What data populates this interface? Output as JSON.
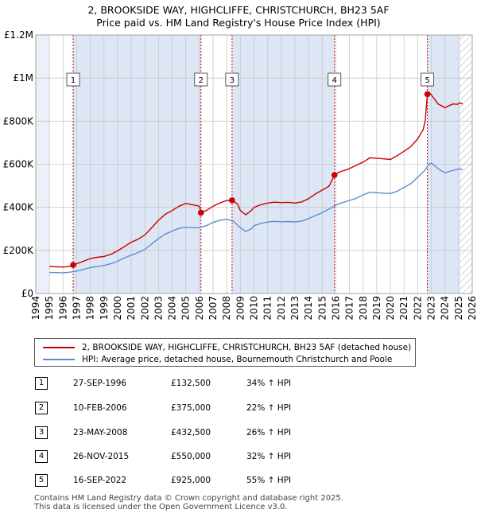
{
  "title_line1": "2, BROOKSIDE WAY, HIGHCLIFFE, CHRISTCHURCH, BH23 5AF",
  "title_line2": "Price paid vs. HM Land Registry's House Price Index (HPI)",
  "colors": {
    "property": "#cc0000",
    "hpi": "#5b8fd0",
    "band": "#dde6f5",
    "grid": "#c8c8c8"
  },
  "chart_data": {
    "type": "line",
    "title": "2, BROOKSIDE WAY, HIGHCLIFFE, CHRISTCHURCH, BH23 5AF — Price paid vs. HM Land Registry's House Price Index (HPI)",
    "xlabel": "",
    "ylabel": "",
    "xlim": [
      1994,
      2026
    ],
    "ylim": [
      0,
      1200000
    ],
    "x_ticks": [
      1994,
      1995,
      1996,
      1997,
      1998,
      1999,
      2000,
      2001,
      2002,
      2003,
      2004,
      2005,
      2006,
      2007,
      2008,
      2009,
      2010,
      2011,
      2012,
      2013,
      2014,
      2015,
      2016,
      2017,
      2018,
      2019,
      2020,
      2021,
      2022,
      2023,
      2024,
      2025,
      2026
    ],
    "y_ticks": [
      {
        "value": 0,
        "label": "£0"
      },
      {
        "value": 200000,
        "label": "£200K"
      },
      {
        "value": 400000,
        "label": "£400K"
      },
      {
        "value": 600000,
        "label": "£600K"
      },
      {
        "value": 800000,
        "label": "£800K"
      },
      {
        "value": 1000000,
        "label": "£1M"
      },
      {
        "value": 1200000,
        "label": "£1.2M"
      }
    ],
    "grid": true,
    "data_start_year": 1995,
    "future_start_year": 2025.1,
    "series": [
      {
        "name": "2, BROOKSIDE WAY, HIGHCLIFFE, CHRISTCHURCH, BH23 5AF (detached house)",
        "color": "#cc0000",
        "points": [
          [
            1995.0,
            125000
          ],
          [
            1995.5,
            124000
          ],
          [
            1996.0,
            123000
          ],
          [
            1996.5,
            126000
          ],
          [
            1996.74,
            132500
          ],
          [
            1997.0,
            138000
          ],
          [
            1997.5,
            150000
          ],
          [
            1998.0,
            162000
          ],
          [
            1998.5,
            168000
          ],
          [
            1999.0,
            172000
          ],
          [
            1999.5,
            182000
          ],
          [
            2000.0,
            198000
          ],
          [
            2000.5,
            218000
          ],
          [
            2001.0,
            238000
          ],
          [
            2001.5,
            252000
          ],
          [
            2002.0,
            272000
          ],
          [
            2002.5,
            305000
          ],
          [
            2003.0,
            340000
          ],
          [
            2003.5,
            368000
          ],
          [
            2004.0,
            385000
          ],
          [
            2004.5,
            405000
          ],
          [
            2005.0,
            418000
          ],
          [
            2005.5,
            412000
          ],
          [
            2006.0,
            405000
          ],
          [
            2006.11,
            375000
          ],
          [
            2006.5,
            385000
          ],
          [
            2007.0,
            405000
          ],
          [
            2007.5,
            420000
          ],
          [
            2008.0,
            432000
          ],
          [
            2008.39,
            432500
          ],
          [
            2008.8,
            415000
          ],
          [
            2009.0,
            385000
          ],
          [
            2009.4,
            365000
          ],
          [
            2009.8,
            385000
          ],
          [
            2010.0,
            400000
          ],
          [
            2010.5,
            412000
          ],
          [
            2011.0,
            420000
          ],
          [
            2011.5,
            424000
          ],
          [
            2012.0,
            422000
          ],
          [
            2012.5,
            423000
          ],
          [
            2013.0,
            420000
          ],
          [
            2013.5,
            425000
          ],
          [
            2014.0,
            440000
          ],
          [
            2014.5,
            462000
          ],
          [
            2015.0,
            480000
          ],
          [
            2015.5,
            498000
          ],
          [
            2015.9,
            550000
          ],
          [
            2016.3,
            565000
          ],
          [
            2016.8,
            575000
          ],
          [
            2017.0,
            580000
          ],
          [
            2017.5,
            595000
          ],
          [
            2018.0,
            610000
          ],
          [
            2018.5,
            630000
          ],
          [
            2019.0,
            628000
          ],
          [
            2019.5,
            625000
          ],
          [
            2020.0,
            622000
          ],
          [
            2020.5,
            640000
          ],
          [
            2021.0,
            660000
          ],
          [
            2021.5,
            682000
          ],
          [
            2022.0,
            718000
          ],
          [
            2022.4,
            760000
          ],
          [
            2022.55,
            800000
          ],
          [
            2022.71,
            925000
          ],
          [
            2022.9,
            930000
          ],
          [
            2023.2,
            905000
          ],
          [
            2023.5,
            880000
          ],
          [
            2023.8,
            870000
          ],
          [
            2024.0,
            862000
          ],
          [
            2024.3,
            872000
          ],
          [
            2024.6,
            880000
          ],
          [
            2024.9,
            878000
          ],
          [
            2025.1,
            885000
          ],
          [
            2025.3,
            880000
          ]
        ]
      },
      {
        "name": "HPI: Average price, detached house, Bournemouth Christchurch and Poole",
        "color": "#5b8fd0",
        "points": [
          [
            1995.0,
            98000
          ],
          [
            1995.5,
            97000
          ],
          [
            1996.0,
            96000
          ],
          [
            1996.5,
            99000
          ],
          [
            1997.0,
            104000
          ],
          [
            1997.5,
            112000
          ],
          [
            1998.0,
            120000
          ],
          [
            1998.5,
            125000
          ],
          [
            1999.0,
            130000
          ],
          [
            1999.5,
            138000
          ],
          [
            2000.0,
            150000
          ],
          [
            2000.5,
            165000
          ],
          [
            2001.0,
            178000
          ],
          [
            2001.5,
            190000
          ],
          [
            2002.0,
            205000
          ],
          [
            2002.5,
            230000
          ],
          [
            2003.0,
            255000
          ],
          [
            2003.5,
            276000
          ],
          [
            2004.0,
            290000
          ],
          [
            2004.5,
            302000
          ],
          [
            2005.0,
            308000
          ],
          [
            2005.5,
            305000
          ],
          [
            2006.0,
            306000
          ],
          [
            2006.5,
            315000
          ],
          [
            2007.0,
            330000
          ],
          [
            2007.5,
            340000
          ],
          [
            2008.0,
            345000
          ],
          [
            2008.5,
            335000
          ],
          [
            2009.0,
            305000
          ],
          [
            2009.4,
            288000
          ],
          [
            2009.8,
            300000
          ],
          [
            2010.0,
            315000
          ],
          [
            2010.5,
            325000
          ],
          [
            2011.0,
            332000
          ],
          [
            2011.5,
            335000
          ],
          [
            2012.0,
            333000
          ],
          [
            2012.5,
            334000
          ],
          [
            2013.0,
            332000
          ],
          [
            2013.5,
            336000
          ],
          [
            2014.0,
            348000
          ],
          [
            2014.5,
            362000
          ],
          [
            2015.0,
            375000
          ],
          [
            2015.5,
            392000
          ],
          [
            2016.0,
            410000
          ],
          [
            2016.5,
            422000
          ],
          [
            2017.0,
            432000
          ],
          [
            2017.5,
            442000
          ],
          [
            2018.0,
            458000
          ],
          [
            2018.5,
            470000
          ],
          [
            2019.0,
            468000
          ],
          [
            2019.5,
            466000
          ],
          [
            2020.0,
            464000
          ],
          [
            2020.5,
            475000
          ],
          [
            2021.0,
            492000
          ],
          [
            2021.5,
            510000
          ],
          [
            2022.0,
            540000
          ],
          [
            2022.5,
            570000
          ],
          [
            2022.8,
            598000
          ],
          [
            2023.0,
            605000
          ],
          [
            2023.3,
            590000
          ],
          [
            2023.6,
            575000
          ],
          [
            2024.0,
            560000
          ],
          [
            2024.4,
            568000
          ],
          [
            2024.8,
            575000
          ],
          [
            2025.1,
            578000
          ],
          [
            2025.3,
            575000
          ]
        ]
      }
    ],
    "transactions": [
      {
        "n": "1",
        "year": 1996.74,
        "price": 132500
      },
      {
        "n": "2",
        "year": 2006.11,
        "price": 375000
      },
      {
        "n": "3",
        "year": 2008.39,
        "price": 432500
      },
      {
        "n": "4",
        "year": 2015.9,
        "price": 550000
      },
      {
        "n": "5",
        "year": 2022.71,
        "price": 925000
      }
    ]
  },
  "legend": {
    "property": "2, BROOKSIDE WAY, HIGHCLIFFE, CHRISTCHURCH, BH23 5AF (detached house)",
    "hpi": "HPI: Average price, detached house, Bournemouth Christchurch and Poole"
  },
  "transactions_table": [
    {
      "n": "1",
      "date": "27-SEP-1996",
      "price": "£132,500",
      "hpi": "34% ↑ HPI"
    },
    {
      "n": "2",
      "date": "10-FEB-2006",
      "price": "£375,000",
      "hpi": "22% ↑ HPI"
    },
    {
      "n": "3",
      "date": "23-MAY-2008",
      "price": "£432,500",
      "hpi": "26% ↑ HPI"
    },
    {
      "n": "4",
      "date": "26-NOV-2015",
      "price": "£550,000",
      "hpi": "32% ↑ HPI"
    },
    {
      "n": "5",
      "date": "16-SEP-2022",
      "price": "£925,000",
      "hpi": "55% ↑ HPI"
    }
  ],
  "footer_line1": "Contains HM Land Registry data © Crown copyright and database right 2025.",
  "footer_line2": "This data is licensed under the Open Government Licence v3.0."
}
